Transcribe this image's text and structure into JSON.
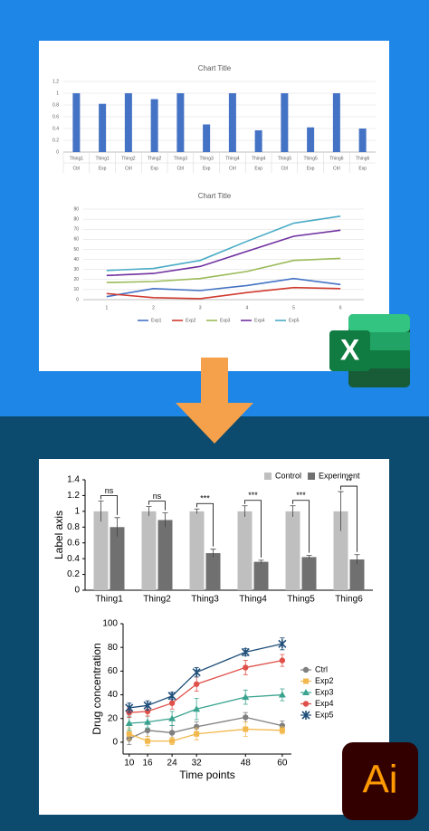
{
  "icons": {
    "excel": "X",
    "illustrator": "Ai"
  },
  "chart_data": [
    {
      "type": "bar",
      "title": "Chart Title",
      "categories": [
        "Thing1",
        "Thing1",
        "Thing2",
        "Thing2",
        "Thing3",
        "Thing3",
        "Thing4",
        "Thing4",
        "Thing5",
        "Thing5",
        "Thing6",
        "Thing6"
      ],
      "subcategories": [
        "Ctrl",
        "Exp",
        "Ctrl",
        "Exp",
        "Ctrl",
        "Exp",
        "Ctrl",
        "Exp",
        "Ctrl",
        "Exp",
        "Ctrl",
        "Exp"
      ],
      "values": [
        1,
        0.82,
        1,
        0.9,
        1,
        0.47,
        1,
        0.37,
        1,
        0.42,
        1,
        0.4
      ],
      "color": "#4472c4",
      "ylim": [
        0,
        1.2
      ],
      "yticks": [
        0,
        0.2,
        0.4,
        0.6,
        0.8,
        1,
        1.2
      ],
      "grid": true
    },
    {
      "type": "line",
      "title": "Chart Title",
      "categories": [
        "1",
        "2",
        "3",
        "4",
        "5",
        "6"
      ],
      "series": [
        {
          "name": "Exp1",
          "color": "#4472c4",
          "values": [
            3,
            11,
            9,
            14,
            21,
            15
          ]
        },
        {
          "name": "Exp2",
          "color": "#d03a2f",
          "values": [
            6,
            2,
            1,
            7,
            12,
            11
          ]
        },
        {
          "name": "Exp3",
          "color": "#9bbb59",
          "values": [
            17,
            18,
            21,
            28,
            39,
            41
          ]
        },
        {
          "name": "Exp4",
          "color": "#7030a0",
          "values": [
            24,
            26,
            33,
            48,
            63,
            69
          ]
        },
        {
          "name": "Exp5",
          "color": "#4bacc6",
          "values": [
            29,
            31,
            39,
            58,
            76,
            83
          ]
        }
      ],
      "ylim": [
        0,
        90
      ],
      "yticks": [
        0,
        10,
        20,
        30,
        40,
        50,
        60,
        70,
        80,
        90
      ],
      "grid": true,
      "legend": "bottom"
    },
    {
      "type": "bar",
      "y_label": "Label axis",
      "categories": [
        "Thing1",
        "Thing2",
        "Thing3",
        "Thing4",
        "Thing5",
        "Thing6"
      ],
      "series": [
        {
          "name": "Control",
          "color": "#bfbfbf",
          "values": [
            1,
            1,
            1,
            1,
            1,
            1
          ],
          "error": [
            0.13,
            0.06,
            0.03,
            0.07,
            0.07,
            0.25
          ]
        },
        {
          "name": "Experiment",
          "color": "#707070",
          "values": [
            0.8,
            0.89,
            0.47,
            0.36,
            0.42,
            0.39
          ],
          "error": [
            0.12,
            0.09,
            0.05,
            0.02,
            0.02,
            0.06
          ]
        }
      ],
      "significance": [
        "ns",
        "ns",
        "***",
        "***",
        "***",
        "**"
      ],
      "ylim": [
        0,
        1.4
      ],
      "yticks": [
        0,
        0.2,
        0.4,
        0.6,
        0.8,
        1,
        1.2,
        1.4
      ],
      "grid": false,
      "legend": "top-right"
    },
    {
      "type": "line",
      "x_label": "Time points",
      "y_label": "Drug concentration",
      "x": [
        10,
        16,
        24,
        32,
        48,
        60
      ],
      "series": [
        {
          "name": "Ctrl",
          "color": "#7f7f7f",
          "marker": "circle",
          "values": [
            3,
            10,
            8,
            13,
            21,
            14
          ],
          "error": [
            5,
            5,
            6,
            4,
            4,
            4
          ]
        },
        {
          "name": "Exp2",
          "color": "#f2b84b",
          "marker": "square",
          "values": [
            7,
            1,
            1,
            7,
            11,
            10
          ],
          "error": [
            5,
            4,
            3,
            5,
            6,
            3
          ]
        },
        {
          "name": "Exp3",
          "color": "#3aa38f",
          "marker": "triangle",
          "values": [
            16,
            17,
            20,
            28,
            38,
            40
          ],
          "error": [
            6,
            5,
            6,
            9,
            6,
            5
          ]
        },
        {
          "name": "Exp4",
          "color": "#e0504a",
          "marker": "circle",
          "values": [
            25,
            26,
            33,
            49,
            63,
            69
          ],
          "error": [
            4,
            4,
            5,
            6,
            6,
            5
          ]
        },
        {
          "name": "Exp5",
          "color": "#1f4e79",
          "marker": "asterisk",
          "values": [
            29,
            31,
            39,
            59,
            76,
            83
          ],
          "error": [
            4,
            4,
            3,
            4,
            3,
            5
          ]
        }
      ],
      "xlim": [
        8,
        63
      ],
      "xticks": [
        10,
        16,
        24,
        32,
        48,
        60
      ],
      "ylim": [
        -10,
        100
      ],
      "yticks": [
        0,
        20,
        40,
        60,
        80,
        100
      ],
      "grid": false,
      "legend": "right"
    }
  ]
}
